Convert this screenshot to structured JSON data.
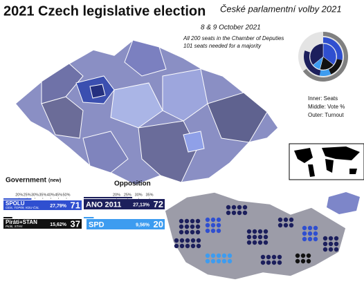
{
  "header": {
    "title": "2021 Czech legislative election",
    "subtitle": "České parlamentní volby 2021",
    "date": "8 & 9 October 2021",
    "note_lines": [
      "All 200 seats in the Chamber of Deputies",
      "101 seats needed for a majority"
    ]
  },
  "legend": [
    "Inner: Seats",
    "Middle: Vote %",
    "Outer: Turnout"
  ],
  "donut": {
    "turnout": 65
  },
  "blocs": [
    {
      "title": "Government",
      "tag": "(new)",
      "xlim": [
        10,
        50
      ],
      "xticks": [
        {
          "value": 20,
          "label": "20%"
        },
        {
          "value": 25,
          "label": "25%"
        },
        {
          "value": 30,
          "label": "30%"
        },
        {
          "value": 35,
          "label": "35%"
        },
        {
          "value": 40,
          "label": "40%"
        },
        {
          "value": 45,
          "label": "45%"
        },
        {
          "value": 50,
          "label": "50%"
        }
      ],
      "parties": [
        {
          "name": "SPOLU",
          "members": "ODS, TOP09, KDU-ČSL",
          "vote": 27.79,
          "vote_label": "27,79%",
          "seats": 71,
          "color": "#2f4fd0"
        },
        {
          "name": "Piráti+STAN",
          "members": "Piráti, STAN",
          "vote": 15.62,
          "vote_label": "15,62%",
          "seats": 37,
          "color": "#111111"
        }
      ]
    },
    {
      "title": "Opposition",
      "xlim": [
        5,
        35
      ],
      "xticks": [
        {
          "value": 20,
          "label": "20%"
        },
        {
          "value": 25,
          "label": "25%"
        },
        {
          "value": 30,
          "label": "30%"
        },
        {
          "value": 35,
          "label": "35%"
        }
      ],
      "parties": [
        {
          "name": "ANO 2011",
          "vote": 27.13,
          "vote_label": "27,13%",
          "seats": 72,
          "color": "#1c1f5c"
        },
        {
          "name": "SPD",
          "vote": 9.56,
          "vote_label": "9,56%",
          "seats": 20,
          "color": "#3d9cf0"
        }
      ]
    }
  ]
}
